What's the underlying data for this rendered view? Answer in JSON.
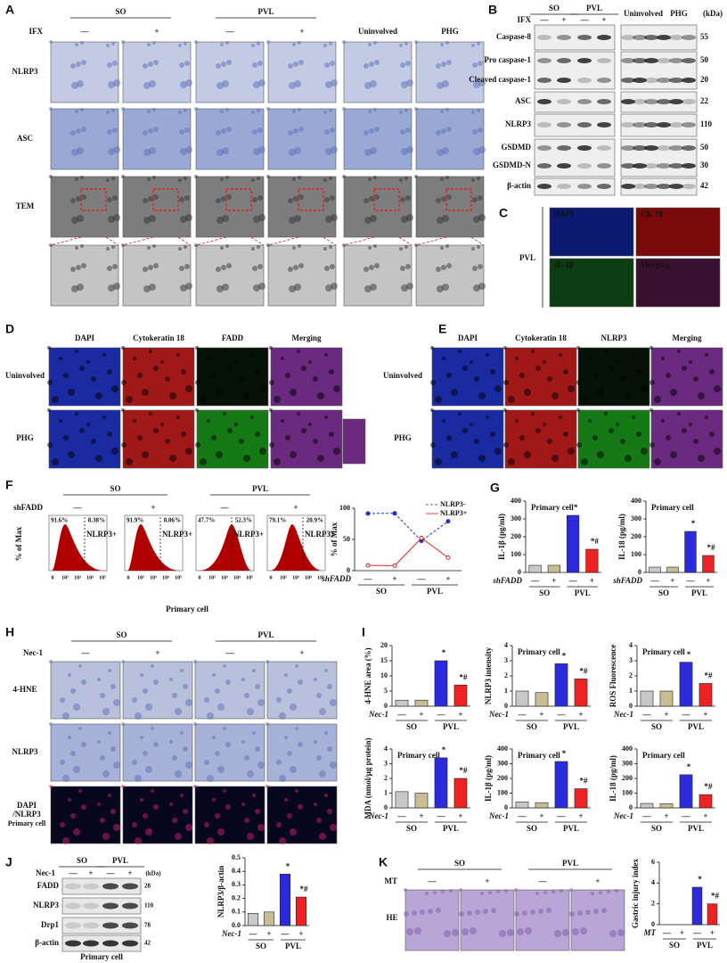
{
  "panels": {
    "A": {
      "label": "A",
      "groups": [
        "SO",
        "PVL"
      ],
      "treatment": "IFX",
      "signs": [
        "—",
        "+",
        "—",
        "+"
      ],
      "side_labels": [
        "Uninvolved",
        "PHG"
      ],
      "rows": [
        "NLRP3",
        "ASC",
        "TEM"
      ]
    },
    "B": {
      "label": "B",
      "groups": [
        "SO",
        "PVL"
      ],
      "treatment": "IFX",
      "signs": [
        "—",
        "+",
        "—",
        "+"
      ],
      "side_labels": [
        "Uninvolved",
        "PHG"
      ],
      "unit": "(kDa)",
      "rows": [
        {
          "name": "Caspase-8",
          "kda": 55
        },
        {
          "name": "Pro caspase-1",
          "kda": 50
        },
        {
          "name": "Cleaved caspase-1",
          "kda": 20
        },
        {
          "name": "ASC",
          "kda": 22
        },
        {
          "name": "NLRP3",
          "kda": 110
        },
        {
          "name": "GSDMD",
          "kda": 50
        },
        {
          "name": "GSDMD-N",
          "kda": 30
        },
        {
          "name": "β-actin",
          "kda": 42
        }
      ]
    },
    "C": {
      "label": "C",
      "row": "PVL",
      "stains": [
        "DAPI",
        "CK 18",
        "IL-1β",
        "Merging"
      ]
    },
    "D": {
      "label": "D",
      "columns": [
        "DAPI",
        "Cytokeratin 18",
        "FADD",
        "Merging"
      ],
      "rows": [
        "Uninvolved",
        "PHG"
      ]
    },
    "E": {
      "label": "E",
      "columns": [
        "DAPI",
        "Cytokeratin 18",
        "NLRP3",
        "Merging"
      ],
      "rows": [
        "Uninvolved",
        "PHG"
      ]
    },
    "F": {
      "label": "F",
      "groups": [
        "SO",
        "PVL"
      ],
      "treatment": "shFADD",
      "signs": [
        "—",
        "+",
        "—",
        "+"
      ],
      "ylabel": "% of Max",
      "xlabel": "Primary cell",
      "gate": "NLRP3+",
      "left_pct": [
        "91.6%",
        "91.9%",
        "47.7%",
        "79.1%"
      ],
      "right_pct": [
        "8.38%",
        "8.06%",
        "52.3%",
        "20.9%"
      ],
      "hist_ticks": [
        "0",
        "10²",
        "10³",
        "10⁴",
        "10⁵"
      ]
    },
    "G": {
      "label": "G"
    },
    "H": {
      "label": "H",
      "groups": [
        "SO",
        "PVL"
      ],
      "treatment": "Nec-1",
      "signs": [
        "—",
        "+",
        "—",
        "+"
      ],
      "rows": [
        "4-HNE",
        "NLRP3"
      ],
      "stain_row": [
        "DAPI",
        "/NLRP3",
        "Primary cell"
      ]
    },
    "I": {
      "label": "I"
    },
    "J": {
      "label": "J",
      "groups": [
        "SO",
        "PVL"
      ],
      "treatment": "Nec-1",
      "signs": [
        "—",
        "+",
        "—",
        "+"
      ],
      "unit": "(kDa)",
      "rows": [
        {
          "name": "FADD",
          "kda": 28
        },
        {
          "name": "NLRP3",
          "kda": 110
        },
        {
          "name": "Drp1",
          "kda": 78
        },
        {
          "name": "β-actin",
          "kda": 42
        }
      ],
      "caption": "Primary cell"
    },
    "K": {
      "label": "K",
      "groups": [
        "SO",
        "PVL"
      ],
      "treatment": "MT",
      "signs": [
        "—",
        "+",
        "—",
        "+"
      ],
      "row": "HE"
    }
  },
  "chart_data": [
    {
      "type": "line",
      "ylabel": "% of Max",
      "ylim": [
        0,
        100
      ],
      "yticks": [
        0,
        50,
        100
      ],
      "categories": [
        "—",
        "+",
        "—",
        "+"
      ],
      "groups": [
        "SO",
        "PVL"
      ],
      "x_label": "shFADD",
      "series": [
        {
          "name": "NLRP3-",
          "color": "#2233cc",
          "line_style": "dashed",
          "values": [
            91.6,
            91.9,
            47.7,
            79.1
          ]
        },
        {
          "name": "NLRP3+",
          "color": "#dd2222",
          "line_style": "solid",
          "values": [
            8.38,
            8.06,
            52.3,
            20.9
          ]
        }
      ]
    },
    {
      "type": "bar",
      "ylabel": "IL-1β (pg/ml)",
      "annotation": "Primary cell",
      "ylim": [
        0,
        400
      ],
      "yticks": [
        0,
        100,
        200,
        300,
        400
      ],
      "categories": [
        "—",
        "+",
        "—",
        "+"
      ],
      "groups": [
        "SO",
        "PVL"
      ],
      "x_label": "shFADD",
      "values": [
        40,
        40,
        320,
        130
      ],
      "colors": [
        "#c8c8c8",
        "#c8bd94",
        "#2b2bdd",
        "#ee2222"
      ],
      "marks": [
        null,
        null,
        "*",
        "*#"
      ]
    },
    {
      "type": "bar",
      "ylabel": "IL-18 (pg/ml)",
      "annotation": "Primary cell",
      "ylim": [
        0,
        400
      ],
      "yticks": [
        0,
        100,
        200,
        300,
        400
      ],
      "categories": [
        "—",
        "+",
        "—",
        "+"
      ],
      "groups": [
        "SO",
        "PVL"
      ],
      "x_label": "shFADD",
      "values": [
        30,
        30,
        230,
        95
      ],
      "colors": [
        "#c8c8c8",
        "#c8bd94",
        "#2b2bdd",
        "#ee2222"
      ],
      "marks": [
        null,
        null,
        "*",
        "*#"
      ]
    },
    {
      "type": "bar",
      "ylabel": "4-HNE area (%)",
      "ylim": [
        0,
        20
      ],
      "yticks": [
        0,
        5,
        10,
        15,
        20
      ],
      "categories": [
        "—",
        "+",
        "—",
        "+"
      ],
      "groups": [
        "SO",
        "PVL"
      ],
      "x_label": "Nec-1",
      "values": [
        2,
        2,
        15,
        7
      ],
      "colors": [
        "#c8c8c8",
        "#c8bd94",
        "#2b2bdd",
        "#ee2222"
      ],
      "marks": [
        null,
        null,
        "*",
        "*#"
      ]
    },
    {
      "type": "bar",
      "ylabel": "NLRP3 intensity",
      "annotation": "Primary cell",
      "ylim": [
        0,
        4
      ],
      "yticks": [
        0,
        1,
        2,
        3,
        4
      ],
      "categories": [
        "—",
        "+",
        "—",
        "+"
      ],
      "groups": [
        "SO",
        "PVL"
      ],
      "x_label": "Nec-1",
      "values": [
        1,
        0.9,
        2.8,
        1.8
      ],
      "colors": [
        "#c8c8c8",
        "#c8bd94",
        "#2b2bdd",
        "#ee2222"
      ],
      "marks": [
        null,
        null,
        "*",
        "*#"
      ]
    },
    {
      "type": "bar",
      "ylabel": "ROS Fluorescence",
      "annotation": "Primary cell",
      "ylim": [
        0,
        4
      ],
      "yticks": [
        0,
        1,
        2,
        3,
        4
      ],
      "categories": [
        "—",
        "+",
        "—",
        "+"
      ],
      "groups": [
        "SO",
        "PVL"
      ],
      "x_label": "Nec-1",
      "values": [
        1,
        1,
        2.9,
        1.5
      ],
      "colors": [
        "#c8c8c8",
        "#c8bd94",
        "#2b2bdd",
        "#ee2222"
      ],
      "marks": [
        null,
        null,
        "*",
        "*#"
      ]
    },
    {
      "type": "bar",
      "ylabel": "MDA (nmol/μg protein)",
      "annotation": "Primary cell",
      "ylim": [
        0,
        4
      ],
      "yticks": [
        0,
        1,
        2,
        3,
        4
      ],
      "categories": [
        "—",
        "+",
        "—",
        "+"
      ],
      "groups": [
        "SO",
        "PVL"
      ],
      "x_label": "Nec-1",
      "values": [
        1.1,
        1,
        3.4,
        2
      ],
      "colors": [
        "#c8c8c8",
        "#c8bd94",
        "#2b2bdd",
        "#ee2222"
      ],
      "marks": [
        null,
        null,
        "*",
        "*#"
      ]
    },
    {
      "type": "bar",
      "ylabel": "IL-1β (pg/ml)",
      "annotation": "Primary cell",
      "ylim": [
        0,
        400
      ],
      "yticks": [
        0,
        100,
        200,
        300,
        400
      ],
      "categories": [
        "—",
        "+",
        "—",
        "+"
      ],
      "groups": [
        "SO",
        "PVL"
      ],
      "x_label": "Nec-1",
      "values": [
        40,
        35,
        315,
        130
      ],
      "colors": [
        "#c8c8c8",
        "#c8bd94",
        "#2b2bdd",
        "#ee2222"
      ],
      "marks": [
        null,
        null,
        "*",
        "*#"
      ]
    },
    {
      "type": "bar",
      "ylabel": "IL-18 (pg/ml)",
      "annotation": "Primary cell",
      "ylim": [
        0,
        400
      ],
      "yticks": [
        0,
        100,
        200,
        300,
        400
      ],
      "categories": [
        "—",
        "+",
        "—",
        "+"
      ],
      "groups": [
        "SO",
        "PVL"
      ],
      "x_label": "Nec-1",
      "values": [
        30,
        28,
        225,
        90
      ],
      "colors": [
        "#c8c8c8",
        "#c8bd94",
        "#2b2bdd",
        "#ee2222"
      ],
      "marks": [
        null,
        null,
        "*",
        "*#"
      ]
    },
    {
      "type": "bar",
      "ylabel": "NLRP3/β-actin",
      "ylim": [
        0,
        0.5
      ],
      "yticks": [
        {
          "value": 0,
          "label": "0.0"
        },
        0.1,
        0.2,
        0.3,
        0.4,
        0.5
      ],
      "categories": [
        "—",
        "+",
        "—",
        "+"
      ],
      "groups": [
        "SO",
        "PVL"
      ],
      "x_label": "Nec-1",
      "values": [
        0.09,
        0.1,
        0.38,
        0.21
      ],
      "colors": [
        "#c8c8c8",
        "#c8bd94",
        "#2b2bdd",
        "#ee2222"
      ],
      "marks": [
        null,
        null,
        "*",
        "*#"
      ]
    },
    {
      "type": "bar",
      "ylabel": "Gastric injury index",
      "ylim": [
        0,
        6
      ],
      "yticks": [
        0,
        2,
        4,
        6
      ],
      "categories": [
        "—",
        "+",
        "—",
        "+"
      ],
      "groups": [
        "SO",
        "PVL"
      ],
      "x_label": "MT",
      "values": [
        0,
        0,
        3.6,
        2
      ],
      "colors": [
        "#c8c8c8",
        "#c8bd94",
        "#2b2bdd",
        "#ee2222"
      ],
      "marks": [
        null,
        null,
        "*",
        "*#"
      ]
    }
  ]
}
